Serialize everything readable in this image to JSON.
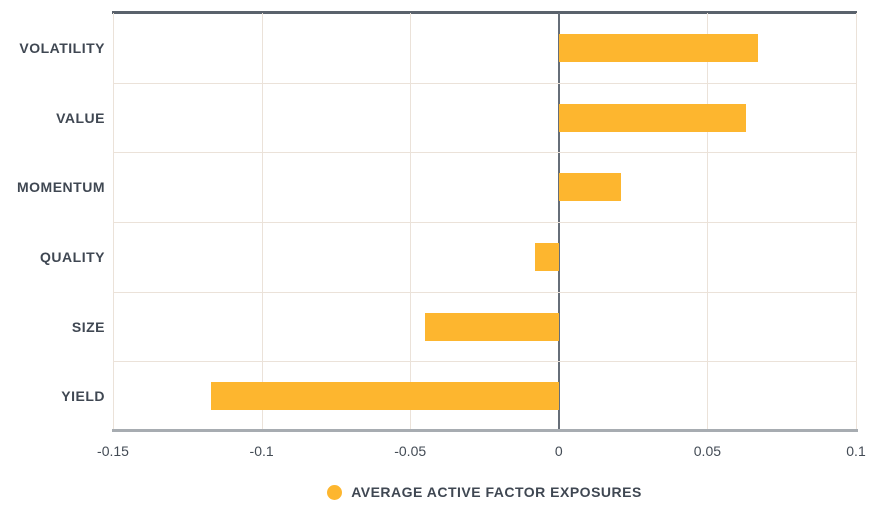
{
  "chart_data": {
    "type": "bar",
    "orientation": "horizontal",
    "categories": [
      "VOLATILITY",
      "VALUE",
      "MOMENTUM",
      "QUALITY",
      "SIZE",
      "YIELD"
    ],
    "values": [
      0.067,
      0.063,
      0.021,
      -0.008,
      -0.045,
      -0.117
    ],
    "series_name": "AVERAGE ACTIVE FACTOR EXPOSURES",
    "x_ticks": [
      -0.15,
      -0.1,
      -0.05,
      0,
      0.05,
      0.1
    ],
    "x_tick_labels": [
      "-0.15",
      "-0.1",
      "-0.05",
      "0",
      "0.05",
      "0.1"
    ],
    "xlim": [
      -0.15,
      0.1
    ],
    "grid": true,
    "legend_position": "bottom",
    "bar_color": "#FDB62F"
  },
  "legend": {
    "marker_icon": "circle-icon",
    "label": "AVERAGE ACTIVE FACTOR EXPOSURES",
    "marker_color": "#FDB62F"
  },
  "colors": {
    "bar": "#FDB62F",
    "gridline": "#EBE2D9",
    "zero_line": "#666E78",
    "top_border": "#5A626C",
    "axis_line": "#A7ACB1",
    "text": "#3F4752",
    "background": "#FFFFFF"
  }
}
